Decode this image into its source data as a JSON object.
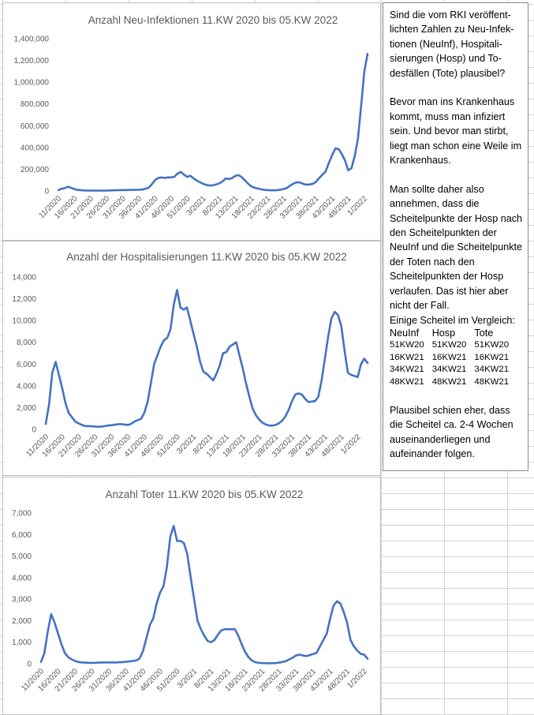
{
  "charts": [
    {
      "id": "neuinfektionen",
      "chart_data": {
        "type": "line",
        "title": "Anzahl Neu-Infektionen 11.KW 2020 bis 05.KW 2022",
        "ylim": [
          0,
          1400000
        ],
        "yticks": [
          "0",
          "200,000",
          "400,000",
          "600,000",
          "800,000",
          "1,000,000",
          "1,200,000",
          "1,400,000"
        ],
        "x_tick_labels": [
          "11/2020",
          "16/2020",
          "21/2020",
          "26/2020",
          "31/2020",
          "36/2020",
          "41/2020",
          "46/2020",
          "51/2020",
          "3/2021",
          "8/2021",
          "13/2021",
          "18/2021",
          "23/2021",
          "28/2021",
          "33/2021",
          "38/2021",
          "43/2021",
          "48/2021",
          "1/2022"
        ],
        "grid": false,
        "series": [
          {
            "name": "",
            "color": "#4472c4",
            "values": [
              8000,
              20000,
              26000,
              40000,
              28000,
              17000,
              10000,
              8000,
              5000,
              4000,
              3500,
              3500,
              3500,
              3500,
              3500,
              4000,
              5000,
              6000,
              7000,
              8000,
              9000,
              9000,
              9500,
              10000,
              10000,
              11000,
              13000,
              20000,
              30000,
              60000,
              100000,
              120000,
              125000,
              120000,
              125000,
              125000,
              130000,
              160000,
              175000,
              150000,
              130000,
              140000,
              115000,
              95000,
              80000,
              65000,
              55000,
              50000,
              52000,
              60000,
              70000,
              90000,
              115000,
              110000,
              120000,
              140000,
              145000,
              125000,
              95000,
              65000,
              40000,
              30000,
              22000,
              15000,
              10000,
              8000,
              6000,
              6000,
              8000,
              12000,
              18000,
              28000,
              50000,
              68000,
              80000,
              78000,
              65000,
              58000,
              60000,
              65000,
              85000,
              120000,
              150000,
              180000,
              260000,
              330000,
              390000,
              385000,
              340000,
              280000,
              190000,
              210000,
              320000,
              480000,
              780000,
              1100000,
              1260000
            ]
          }
        ]
      }
    },
    {
      "id": "hospitalisierungen",
      "chart_data": {
        "type": "line",
        "title": "Anzahl der Hospitalisierungen 11.KW 2020 bis 05.KW 2022",
        "ylim": [
          0,
          14000
        ],
        "yticks": [
          "0",
          "2,000",
          "4,000",
          "6,000",
          "8,000",
          "10,000",
          "12,000",
          "14,000"
        ],
        "x_tick_labels": [
          "11/2020",
          "16/2020",
          "21/2020",
          "26/2020",
          "31/2020",
          "36/2020",
          "41/2020",
          "46/2020",
          "51/2020",
          "3/2021",
          "8/2021",
          "13/2021",
          "18/2021",
          "23/2021",
          "28/2021",
          "33/2021",
          "38/2021",
          "43/2021",
          "48/2021",
          "1/2022"
        ],
        "grid": false,
        "series": [
          {
            "name": "",
            "color": "#4472c4",
            "values": [
              500,
              2300,
              5200,
              6200,
              5000,
              3800,
              2400,
              1500,
              1100,
              700,
              550,
              400,
              300,
              300,
              280,
              250,
              230,
              260,
              300,
              350,
              380,
              420,
              470,
              480,
              440,
              400,
              500,
              700,
              850,
              950,
              1500,
              2500,
              4200,
              6000,
              6800,
              7600,
              8200,
              8400,
              9200,
              11500,
              12800,
              11200,
              11000,
              11200,
              10000,
              8800,
              7600,
              6200,
              5300,
              5100,
              4800,
              4500,
              5100,
              5900,
              7000,
              7100,
              7600,
              7800,
              8000,
              6800,
              5600,
              4200,
              3000,
              1900,
              1300,
              900,
              600,
              450,
              350,
              350,
              400,
              550,
              800,
              1200,
              1800,
              2600,
              3200,
              3300,
              3200,
              2800,
              2500,
              2550,
              2600,
              3000,
              4500,
              6500,
              8500,
              10200,
              10800,
              10500,
              9500,
              7200,
              5200,
              5000,
              4900,
              4800,
              6000,
              6500,
              6100
            ]
          }
        ]
      }
    },
    {
      "id": "tote",
      "chart_data": {
        "type": "line",
        "title": "Anzahl Toter 11.KW 2020 bis 05.KW 2022",
        "ylim": [
          0,
          7000
        ],
        "yticks": [
          "0",
          "1,000",
          "2,000",
          "3,000",
          "4,000",
          "5,000",
          "6,000",
          "7,000"
        ],
        "x_tick_labels": [
          "11/2020",
          "16/2020",
          "21/2020",
          "26/2020",
          "31/2020",
          "36/2020",
          "41/2020",
          "46/2020",
          "51/2020",
          "3/2021",
          "8/2021",
          "13/2021",
          "18/2021",
          "23/2021",
          "28/2021",
          "33/2021",
          "38/2021",
          "43/2021",
          "48/2021",
          "1/2022"
        ],
        "grid": false,
        "series": [
          {
            "name": "",
            "color": "#4472c4",
            "values": [
              80,
              500,
              1500,
              2300,
              1900,
              1400,
              900,
              500,
              300,
              200,
              130,
              80,
              60,
              50,
              40,
              40,
              40,
              50,
              60,
              60,
              60,
              60,
              60,
              70,
              70,
              90,
              110,
              130,
              150,
              250,
              600,
              1200,
              1800,
              2100,
              2800,
              3300,
              3600,
              4500,
              5900,
              6400,
              5700,
              5700,
              5600,
              5100,
              4000,
              3000,
              2000,
              1600,
              1300,
              1050,
              1000,
              1100,
              1350,
              1550,
              1600,
              1600,
              1600,
              1600,
              1300,
              900,
              550,
              300,
              150,
              70,
              40,
              30,
              25,
              20,
              25,
              30,
              50,
              80,
              120,
              200,
              280,
              380,
              420,
              380,
              350,
              400,
              450,
              500,
              800,
              1100,
              1400,
              2100,
              2700,
              2900,
              2800,
              2400,
              1900,
              1100,
              800,
              600,
              450,
              420,
              230
            ]
          }
        ]
      }
    }
  ],
  "note": {
    "paragraphs": [
      "Sind die vom RKI veröffent-lichten Zahlen zu Neu-Infek-tionen (NeuInf), Hospitali-sierungen (Hosp) und To-desfällen (Tote) plausibel?",
      "Bevor man ins Krankenhaus kommt, muss man infiziert sein. Und bevor man stirbt, liegt man schon eine Weile im Krankenhaus.",
      "Man sollte daher also annehmen, dass die Scheitelpunkte der Hosp nach den Scheitelpunkten der NeuInf und die Scheitelpunkte der Toten nach den Scheitelpunkten der Hosp verlaufen. Das ist hier aber nicht der Fall."
    ],
    "compare_intro": "Einige Scheitel im Vergleich:",
    "compare_headers": [
      "NeuInf",
      "Hosp",
      "Tote"
    ],
    "compare_rows": [
      [
        "51KW20",
        "51KW20",
        "51KW20"
      ],
      [
        "16KW21",
        "16KW21",
        "16KW21"
      ],
      [
        "34KW21",
        "34KW21",
        "34KW21"
      ],
      [
        "48KW21",
        "48KW21",
        "48KW21"
      ]
    ],
    "conclusion": "Plausibel schien eher, dass die Scheitel ca. 2-4 Wochen auseinanderliegen und aufeinander folgen."
  }
}
